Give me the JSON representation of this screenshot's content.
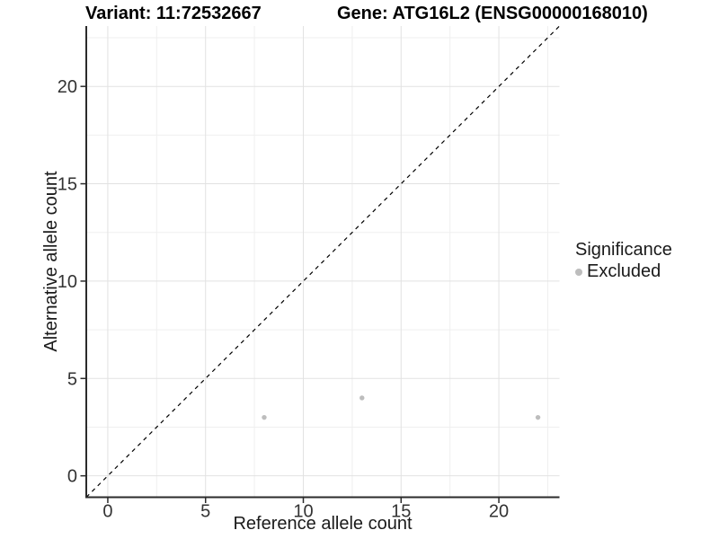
{
  "header": {
    "variant_title": "Variant: 11:72532667",
    "gene_title": "Gene: ATG16L2 (ENSG00000168010)"
  },
  "legend": {
    "title": "Significance",
    "items": [
      {
        "label": "Excluded",
        "color": "#bdbdbd"
      }
    ]
  },
  "chart_data": {
    "type": "scatter",
    "title": "Variant: 11:72532667 — Gene: ATG16L2 (ENSG00000168010)",
    "xlabel": "Reference allele count",
    "ylabel": "Alternative allele count",
    "xlim": [
      -1.1,
      23.1
    ],
    "ylim": [
      -1.1,
      23.1
    ],
    "xticks": [
      0,
      5,
      10,
      15,
      20
    ],
    "yticks": [
      0,
      5,
      10,
      15,
      20
    ],
    "minor_ticks_x": [
      2.5,
      7.5,
      12.5,
      17.5,
      22.5
    ],
    "minor_ticks_y": [
      2.5,
      7.5,
      12.5,
      17.5,
      22.5
    ],
    "grid": "on",
    "legend_position": "right",
    "series": [
      {
        "name": "Excluded",
        "color": "#bdbdbd",
        "marker": "circle",
        "points": [
          [
            8,
            3
          ],
          [
            13,
            4
          ],
          [
            22,
            3
          ]
        ]
      }
    ],
    "reference_line": {
      "kind": "identity y=x",
      "style": "dashed",
      "color": "#000000"
    }
  },
  "colors": {
    "background": "#ffffff",
    "grid_major": "#e2e2e2",
    "grid_minor": "#efefef",
    "axis_line": "#2b2b2b",
    "tick_label": "#333333",
    "point": "#bdbdbd"
  }
}
